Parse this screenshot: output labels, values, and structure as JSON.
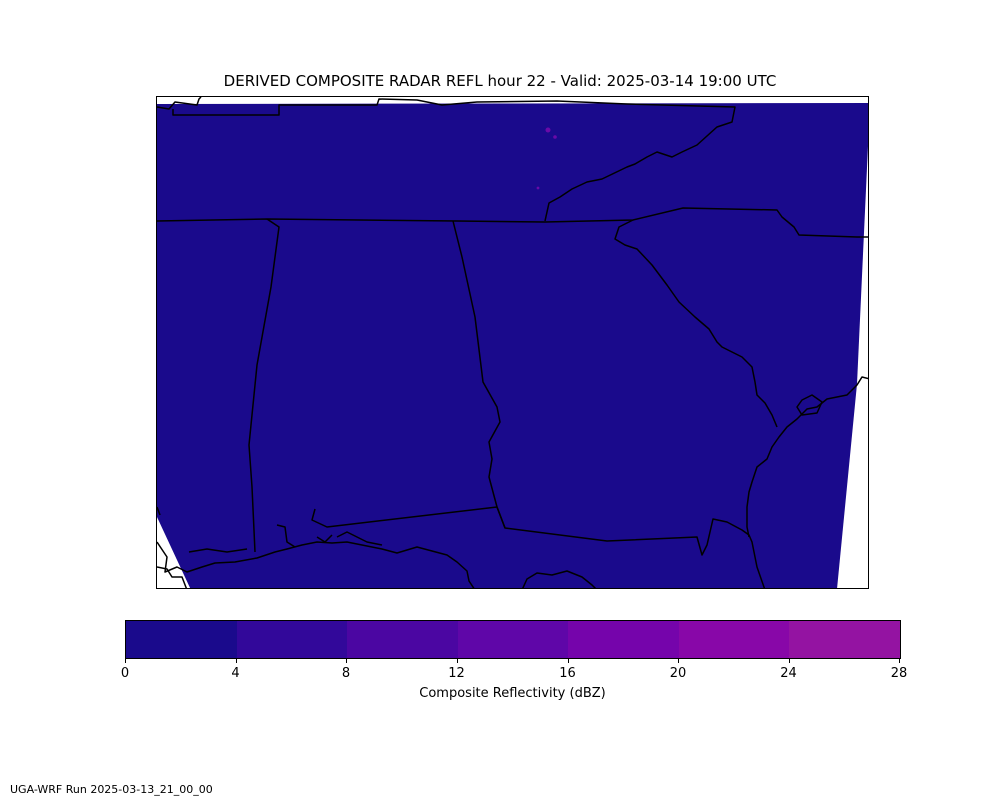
{
  "title": "DERIVED COMPOSITE RADAR REFL hour 22 - Valid: 2025-03-14 19:00 UTC",
  "map": {
    "field_color": "#1a0a8c",
    "echo_color": "#6a0aa8",
    "background": "#ffffff",
    "border_color": "#000000"
  },
  "colorbar": {
    "label": "Composite Reflectivity (dBZ)",
    "ticks": [
      "0",
      "4",
      "8",
      "12",
      "16",
      "20",
      "24",
      "28"
    ],
    "segments": [
      "#1a0a8c",
      "#32089a",
      "#4b06a2",
      "#5f06a8",
      "#7504ab",
      "#8807a8",
      "#9413a2"
    ]
  },
  "footer": "UGA-WRF Run 2025-03-13_21_00_00"
}
